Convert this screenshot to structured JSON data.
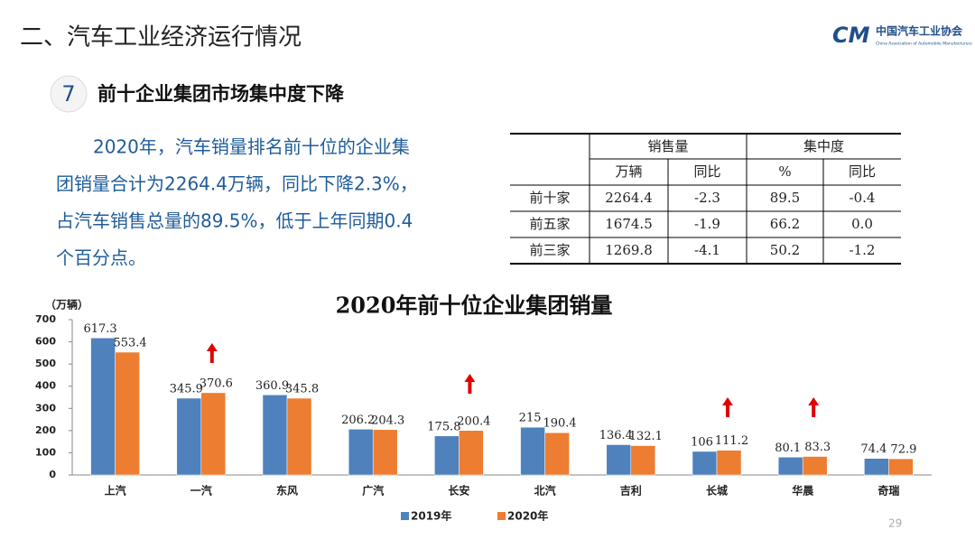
{
  "header": {
    "title": "二、汽车工业经济运行情况",
    "logo_mark": "CM",
    "logo_name": "中国汽车工业协会",
    "logo_subtitle": "China Association of Automobile Manufacturers"
  },
  "section": {
    "number": "7",
    "heading": "前十企业集团市场集中度下降"
  },
  "paragraph": {
    "lines": [
      "2020年，汽车销量排名前十位的企业集",
      "团销量合计为2264.4万辆，同比下降2.3%，",
      "占汽车销售总量的89.5%，低于上年同期0.4",
      "个百分点。"
    ]
  },
  "table": {
    "header_top": [
      "销售量",
      "集中度"
    ],
    "header_sub": [
      "万辆",
      "同比",
      "%",
      "同比"
    ],
    "rows": [
      [
        "前十家",
        "2264.4",
        "-2.3",
        "89.5",
        "-0.4"
      ],
      [
        "前五家",
        "1674.5",
        "-1.9",
        "66.2",
        "0.0"
      ],
      [
        "前三家",
        "1269.8",
        "-4.1",
        "50.2",
        "-1.2"
      ]
    ]
  },
  "chart_data": {
    "type": "bar",
    "title": "2020年前十位企业集团销量",
    "y_label": "（万辆）",
    "categories": [
      "上汽",
      "一汽",
      "东风",
      "广汽",
      "长安",
      "北汽",
      "吉利",
      "长城",
      "华晨",
      "奇瑞"
    ],
    "series": [
      {
        "name": "2019年",
        "color": "#4f81bd",
        "values": [
          617.3,
          345.9,
          360.9,
          206.2,
          175.8,
          215.0,
          136.4,
          106.0,
          80.1,
          74.4
        ]
      },
      {
        "name": "2020年",
        "color": "#ed7d31",
        "values": [
          553.4,
          370.6,
          345.8,
          204.3,
          200.4,
          190.4,
          132.1,
          111.2,
          83.3,
          72.9
        ]
      }
    ],
    "ylim": [
      0,
      700
    ],
    "yticks": [
      0,
      100,
      200,
      300,
      400,
      500,
      600,
      700
    ]
  },
  "page_number": "29"
}
